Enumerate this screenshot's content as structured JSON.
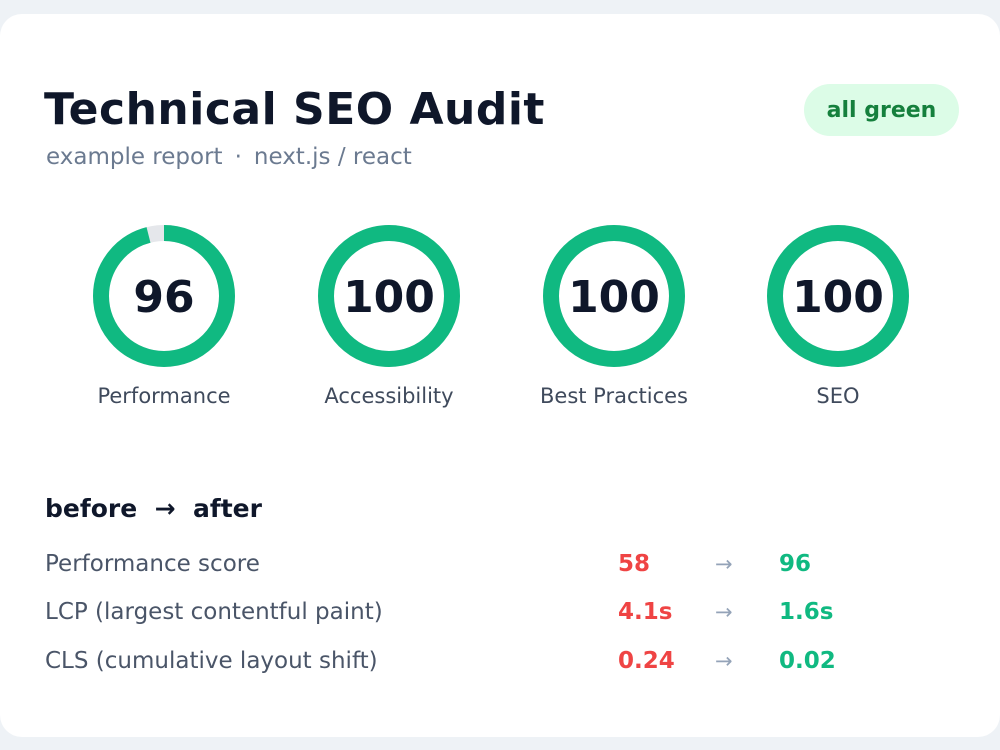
{
  "header": {
    "title": "Technical SEO Audit",
    "subtitle_left": "example report",
    "subtitle_sep": "·",
    "subtitle_right": "next.js / react",
    "badge": "all green"
  },
  "scores": [
    {
      "label": "Performance",
      "score": "96",
      "value": 96
    },
    {
      "label": "Accessibility",
      "score": "100",
      "value": 100
    },
    {
      "label": "Best Practices",
      "score": "100",
      "value": 100
    },
    {
      "label": "SEO",
      "score": "100",
      "value": 100
    }
  ],
  "comparison": {
    "title_before": "before",
    "title_arrow": "→",
    "title_after": "after",
    "rows": [
      {
        "metric": "Performance score",
        "before": "58",
        "arrow": "→",
        "after": "96"
      },
      {
        "metric": "LCP (largest contentful paint)",
        "before": "4.1s",
        "arrow": "→",
        "after": "1.6s"
      },
      {
        "metric": "CLS (cumulative layout shift)",
        "before": "0.24",
        "arrow": "→",
        "after": "0.02"
      }
    ]
  },
  "colors": {
    "gauge_fill": "#10b981",
    "gauge_track": "#e5e7eb",
    "before": "#ef4444",
    "after": "#10b981",
    "badge_bg": "#dcfce7",
    "badge_text": "#15803d"
  }
}
